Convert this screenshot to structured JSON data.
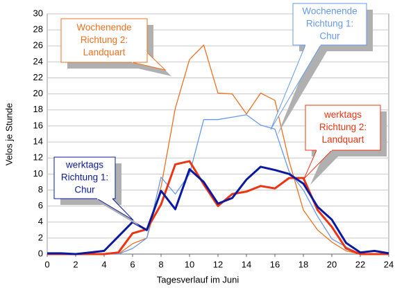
{
  "chart_data": {
    "type": "line",
    "x": [
      0,
      1,
      2,
      3,
      4,
      5,
      6,
      7,
      8,
      9,
      10,
      11,
      12,
      13,
      14,
      15,
      16,
      17,
      18,
      19,
      20,
      21,
      22,
      23,
      24
    ],
    "xlabel": "Tagesverlauf im Juni",
    "ylabel": "Velos je Stunde",
    "xlim": [
      0,
      24
    ],
    "xticks": [
      0,
      2,
      4,
      6,
      8,
      10,
      12,
      14,
      16,
      18,
      20,
      22,
      24
    ],
    "ylim": [
      0,
      30
    ],
    "yticks": [
      0,
      2,
      4,
      6,
      8,
      10,
      12,
      14,
      16,
      18,
      20,
      22,
      24,
      26,
      28,
      30
    ],
    "grid": true,
    "series": [
      {
        "name": "Wochenende Richtung 2: Landquart",
        "color": "#f07020",
        "width": 1.3,
        "values": [
          0,
          0,
          0,
          0,
          0,
          0,
          1.3,
          2.0,
          8.4,
          18.2,
          24.3,
          26.1,
          20.1,
          20.0,
          17.5,
          20.1,
          19.2,
          11.6,
          5.5,
          3.0,
          1.5,
          0.4,
          0,
          0,
          0
        ]
      },
      {
        "name": "Wochenende Richtung 1: Chur",
        "color": "#6699ee",
        "width": 1.3,
        "values": [
          0,
          0,
          0,
          0,
          0,
          0,
          0.7,
          2.0,
          9.6,
          7.5,
          10.0,
          16.8,
          16.8,
          17.1,
          17.4,
          16.1,
          15.6,
          10.3,
          8.0,
          4.7,
          1.9,
          0.9,
          0,
          0,
          0
        ]
      },
      {
        "name": "werktags Richtung 2: Landquart",
        "color": "#ee3311",
        "width": 3,
        "values": [
          0,
          0,
          0,
          0,
          0,
          0.2,
          2.6,
          3.1,
          6.2,
          11.2,
          11.6,
          8.7,
          6.0,
          7.5,
          7.8,
          8.5,
          8.2,
          9.5,
          9.5,
          5.5,
          3.4,
          0.7,
          0,
          0,
          0
        ]
      },
      {
        "name": "werktags Richtung 1: Chur",
        "color": "#0a1aa0",
        "width": 3,
        "values": [
          0.1,
          0.1,
          0,
          0.2,
          0.4,
          2.2,
          4.0,
          3.0,
          7.9,
          5.6,
          10.6,
          9.0,
          6.3,
          7.0,
          9.3,
          10.9,
          10.5,
          10.0,
          8.8,
          5.9,
          4.3,
          1.4,
          0.2,
          0.4,
          0.1
        ]
      }
    ],
    "annotations": [
      {
        "lines": [
          "Wochenende",
          "Richtung 2:",
          "Landquart"
        ],
        "color": "#f07020"
      },
      {
        "lines": [
          "Wochenende",
          "Richtung 1:",
          "Chur"
        ],
        "color": "#6699ee"
      },
      {
        "lines": [
          "werktags",
          "Richtung 2:",
          "Landquart"
        ],
        "color": "#ee3311"
      },
      {
        "lines": [
          "werktags",
          "Richtung 1:",
          "Chur"
        ],
        "color": "#0a1aa0"
      }
    ]
  }
}
